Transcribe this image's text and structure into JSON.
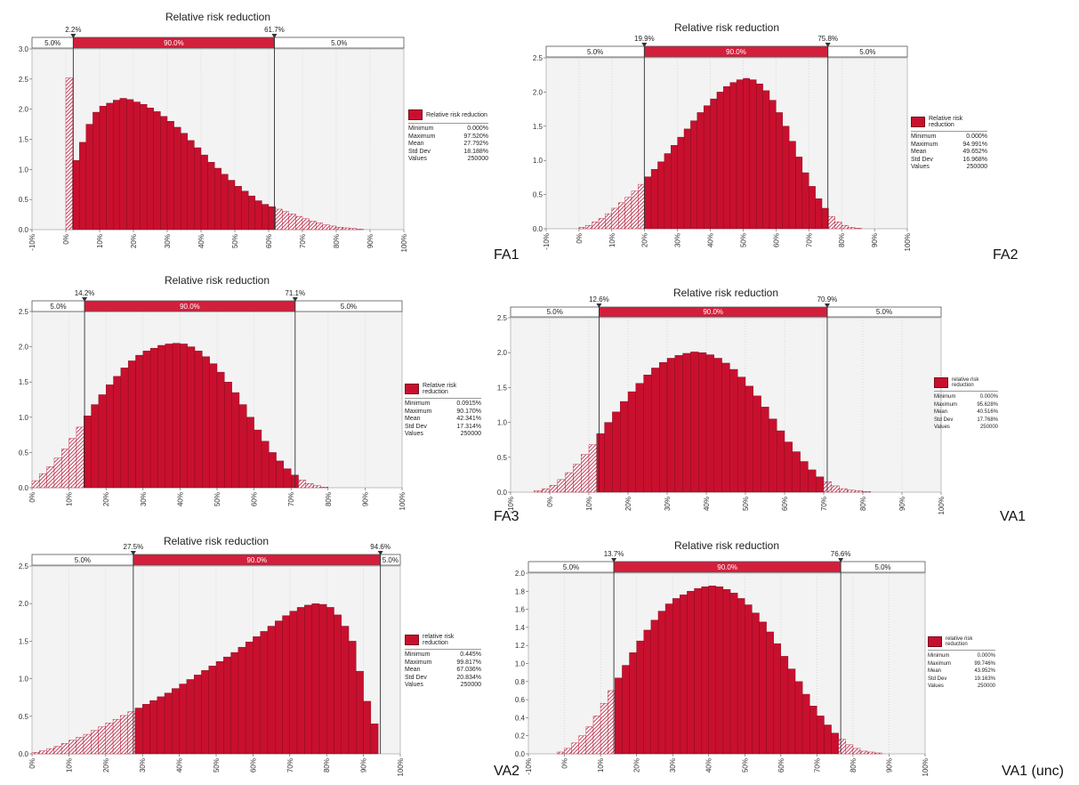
{
  "page": {
    "background": "#ffffff"
  },
  "colors": {
    "bar_fill": "#c8102e",
    "bar_stroke": "#7a0a1c",
    "hatch": "#b01030",
    "band_red": "#d21f3c",
    "plot_bg": "#f3f3f3"
  },
  "chart_data": [
    {
      "type": "bar",
      "tag": "FA1",
      "title": "Relative risk reduction",
      "band": {
        "left_pct": "5.0%",
        "mid_pct": "90.0%",
        "right_pct": "5.0%",
        "left_cut": "2.2%",
        "right_cut": "61.7%"
      },
      "cuts": [
        2.2,
        61.7
      ],
      "xlim": [
        -10,
        100
      ],
      "ylim": [
        0,
        3.0
      ],
      "yticks": [
        0,
        0.5,
        1.0,
        1.5,
        2.0,
        2.5,
        3.0
      ],
      "xticks": [
        -10,
        0,
        10,
        20,
        30,
        40,
        50,
        60,
        70,
        80,
        90,
        100
      ],
      "xtick_labels": [
        "-10%",
        "0%",
        "10%",
        "20%",
        "30%",
        "40%",
        "50%",
        "60%",
        "70%",
        "80%",
        "90%",
        "100%"
      ],
      "bin_start": 0,
      "bin_width": 2,
      "values": [
        2.52,
        1.15,
        1.45,
        1.75,
        1.95,
        2.05,
        2.1,
        2.15,
        2.18,
        2.16,
        2.12,
        2.08,
        2.02,
        1.96,
        1.88,
        1.8,
        1.7,
        1.6,
        1.48,
        1.36,
        1.24,
        1.12,
        1.02,
        0.92,
        0.82,
        0.72,
        0.64,
        0.56,
        0.48,
        0.42,
        0.38,
        0.34,
        0.3,
        0.26,
        0.22,
        0.18,
        0.14,
        0.11,
        0.08,
        0.06,
        0.04,
        0.03,
        0.02,
        0.01
      ],
      "legend": {
        "name": "Relative risk reduction",
        "stats": [
          {
            "label": "Minimum",
            "value": "0.000%"
          },
          {
            "label": "Maximum",
            "value": "97.520%"
          },
          {
            "label": "Mean",
            "value": "27.792%"
          },
          {
            "label": "Std Dev",
            "value": "18.188%"
          },
          {
            "label": "Values",
            "value": "250000"
          }
        ]
      }
    },
    {
      "type": "bar",
      "tag": "FA2",
      "title": "Relative risk reduction",
      "band": {
        "left_pct": "5.0%",
        "mid_pct": "90.0%",
        "right_pct": "5.0%",
        "left_cut": "19.9%",
        "right_cut": "75.8%"
      },
      "cuts": [
        19.9,
        75.8
      ],
      "xlim": [
        -10,
        100
      ],
      "ylim": [
        0,
        2.5
      ],
      "yticks": [
        0,
        0.5,
        1.0,
        1.5,
        2.0,
        2.5
      ],
      "xticks": [
        -10,
        0,
        10,
        20,
        30,
        40,
        50,
        60,
        70,
        80,
        90,
        100
      ],
      "xtick_labels": [
        "-10%",
        "0%",
        "10%",
        "20%",
        "30%",
        "40%",
        "50%",
        "60%",
        "70%",
        "80%",
        "90%",
        "100%"
      ],
      "bin_start": 0,
      "bin_width": 2,
      "values": [
        0.02,
        0.05,
        0.1,
        0.15,
        0.22,
        0.3,
        0.38,
        0.46,
        0.55,
        0.65,
        0.76,
        0.87,
        0.98,
        1.1,
        1.22,
        1.34,
        1.46,
        1.58,
        1.7,
        1.8,
        1.9,
        2.0,
        2.08,
        2.14,
        2.18,
        2.2,
        2.18,
        2.12,
        2.02,
        1.88,
        1.7,
        1.5,
        1.28,
        1.05,
        0.82,
        0.62,
        0.44,
        0.3,
        0.18,
        0.1,
        0.05,
        0.02,
        0.01
      ],
      "legend": {
        "name": "Relative risk reduction",
        "stats": [
          {
            "label": "Minimum",
            "value": "0.000%"
          },
          {
            "label": "Maximum",
            "value": "94.991%"
          },
          {
            "label": "Mean",
            "value": "49.652%"
          },
          {
            "label": "Std Dev",
            "value": "16.968%"
          },
          {
            "label": "Values",
            "value": "250000"
          }
        ]
      }
    },
    {
      "type": "bar",
      "tag": "FA3",
      "title": "Relative risk reduction",
      "band": {
        "left_pct": "5.0%",
        "mid_pct": "90.0%",
        "right_pct": "5.0%",
        "left_cut": "14.2%",
        "right_cut": "71.1%"
      },
      "cuts": [
        14.2,
        71.1
      ],
      "xlim": [
        0,
        100
      ],
      "ylim": [
        0,
        2.5
      ],
      "yticks": [
        0,
        0.5,
        1.0,
        1.5,
        2.0,
        2.5
      ],
      "xticks": [
        0,
        10,
        20,
        30,
        40,
        50,
        60,
        70,
        80,
        90,
        100
      ],
      "xtick_labels": [
        "0%",
        "10%",
        "20%",
        "30%",
        "40%",
        "50%",
        "60%",
        "70%",
        "80%",
        "90%",
        "100%"
      ],
      "bin_start": 0,
      "bin_width": 2,
      "values": [
        0.1,
        0.2,
        0.3,
        0.42,
        0.55,
        0.7,
        0.86,
        1.02,
        1.18,
        1.32,
        1.46,
        1.58,
        1.7,
        1.8,
        1.88,
        1.94,
        1.98,
        2.02,
        2.04,
        2.05,
        2.04,
        2.0,
        1.94,
        1.86,
        1.76,
        1.64,
        1.5,
        1.35,
        1.18,
        1.0,
        0.82,
        0.66,
        0.5,
        0.38,
        0.27,
        0.18,
        0.11,
        0.06,
        0.03,
        0.01
      ],
      "legend": {
        "name": "Relative risk reduction",
        "stats": [
          {
            "label": "Minimum",
            "value": "0.0915%"
          },
          {
            "label": "Maximum",
            "value": "90.170%"
          },
          {
            "label": "Mean",
            "value": "42.341%"
          },
          {
            "label": "Std Dev",
            "value": "17.314%"
          },
          {
            "label": "Values",
            "value": "250000"
          }
        ]
      }
    },
    {
      "type": "bar",
      "tag": "VA1",
      "title": "Relative risk reduction",
      "band": {
        "left_pct": "5.0%",
        "mid_pct": "90.0%",
        "right_pct": "5.0%",
        "left_cut": "12.6%",
        "right_cut": "70.9%"
      },
      "cuts": [
        12.6,
        70.9
      ],
      "xlim": [
        -10,
        100
      ],
      "ylim": [
        0,
        2.5
      ],
      "yticks": [
        0,
        0.5,
        1.0,
        1.5,
        2.0,
        2.5
      ],
      "xticks": [
        -10,
        0,
        10,
        20,
        30,
        40,
        50,
        60,
        70,
        80,
        90,
        100
      ],
      "xtick_labels": [
        "-10%",
        "0%",
        "10%",
        "20%",
        "30%",
        "40%",
        "50%",
        "60%",
        "70%",
        "80%",
        "90%",
        "100%"
      ],
      "bin_start": -4,
      "bin_width": 2,
      "values": [
        0.02,
        0.05,
        0.1,
        0.18,
        0.28,
        0.4,
        0.54,
        0.68,
        0.84,
        1.0,
        1.15,
        1.3,
        1.44,
        1.56,
        1.68,
        1.78,
        1.86,
        1.92,
        1.96,
        1.99,
        2.01,
        2.0,
        1.97,
        1.92,
        1.85,
        1.76,
        1.65,
        1.52,
        1.38,
        1.22,
        1.05,
        0.88,
        0.72,
        0.58,
        0.44,
        0.32,
        0.22,
        0.15,
        0.09,
        0.05,
        0.03,
        0.02,
        0.01
      ],
      "legend": {
        "name": "relative risk reduction",
        "stats": [
          {
            "label": "Minimum",
            "value": "0.000%"
          },
          {
            "label": "Maximum",
            "value": "95.628%"
          },
          {
            "label": "Mean",
            "value": "40.516%"
          },
          {
            "label": "Std Dev",
            "value": "17.768%"
          },
          {
            "label": "Values",
            "value": "250000"
          }
        ]
      }
    },
    {
      "type": "bar",
      "tag": "VA2",
      "title": "Relative risk reduction",
      "band": {
        "left_pct": "5.0%",
        "mid_pct": "90.0%",
        "right_pct": "5.0%",
        "left_cut": "27.5%",
        "right_cut": "94.6%"
      },
      "cuts": [
        27.5,
        94.6
      ],
      "xlim": [
        0,
        100
      ],
      "ylim": [
        0,
        2.5
      ],
      "yticks": [
        0,
        0.5,
        1.0,
        1.5,
        2.0,
        2.5
      ],
      "xticks": [
        0,
        10,
        20,
        30,
        40,
        50,
        60,
        70,
        80,
        90,
        100
      ],
      "xtick_labels": [
        "0%",
        "10%",
        "20%",
        "30%",
        "40%",
        "50%",
        "60%",
        "70%",
        "80%",
        "90%",
        "100%"
      ],
      "bin_start": 0,
      "bin_width": 2,
      "values": [
        0.02,
        0.04,
        0.07,
        0.1,
        0.14,
        0.18,
        0.22,
        0.26,
        0.31,
        0.36,
        0.41,
        0.46,
        0.51,
        0.56,
        0.61,
        0.66,
        0.71,
        0.76,
        0.81,
        0.87,
        0.93,
        0.99,
        1.05,
        1.11,
        1.17,
        1.23,
        1.29,
        1.35,
        1.42,
        1.49,
        1.56,
        1.63,
        1.7,
        1.77,
        1.84,
        1.9,
        1.95,
        1.98,
        2.0,
        1.99,
        1.95,
        1.85,
        1.7,
        1.5,
        1.1,
        0.7,
        0.4
      ],
      "legend": {
        "name": "relative risk reduction",
        "stats": [
          {
            "label": "Minimum",
            "value": "0.445%"
          },
          {
            "label": "Maximum",
            "value": "99.817%"
          },
          {
            "label": "Mean",
            "value": "67.036%"
          },
          {
            "label": "Std Dev",
            "value": "20.834%"
          },
          {
            "label": "Values",
            "value": "250000"
          }
        ]
      }
    },
    {
      "type": "bar",
      "tag": "VA1 (unc)",
      "title": "Relative risk reduction",
      "band": {
        "left_pct": "5.0%",
        "mid_pct": "90.0%",
        "right_pct": "5.0%",
        "left_cut": "13.7%",
        "right_cut": "76.6%"
      },
      "cuts": [
        13.7,
        76.6
      ],
      "xlim": [
        -10,
        100
      ],
      "ylim": [
        0,
        2.0
      ],
      "yticks": [
        0,
        0.2,
        0.4,
        0.6,
        0.8,
        1.0,
        1.2,
        1.4,
        1.6,
        1.8,
        2.0
      ],
      "xticks": [
        -10,
        0,
        10,
        20,
        30,
        40,
        50,
        60,
        70,
        80,
        90,
        100
      ],
      "xtick_labels": [
        "-10%",
        "0%",
        "10%",
        "20%",
        "30%",
        "40%",
        "50%",
        "60%",
        "70%",
        "80%",
        "90%",
        "100%"
      ],
      "bin_start": -2,
      "bin_width": 2,
      "values": [
        0.02,
        0.06,
        0.12,
        0.2,
        0.3,
        0.42,
        0.56,
        0.7,
        0.84,
        0.98,
        1.12,
        1.25,
        1.37,
        1.48,
        1.58,
        1.66,
        1.72,
        1.76,
        1.8,
        1.83,
        1.85,
        1.86,
        1.85,
        1.82,
        1.78,
        1.72,
        1.65,
        1.56,
        1.46,
        1.35,
        1.22,
        1.08,
        0.94,
        0.8,
        0.66,
        0.53,
        0.42,
        0.32,
        0.23,
        0.16,
        0.1,
        0.06,
        0.03,
        0.02,
        0.01
      ],
      "legend": {
        "name": "relative risk reduction",
        "stats": [
          {
            "label": "Minimum",
            "value": "0.000%"
          },
          {
            "label": "Maximum",
            "value": "99.746%"
          },
          {
            "label": "Mean",
            "value": "43.952%"
          },
          {
            "label": "Std Dev",
            "value": "19.163%"
          },
          {
            "label": "Values",
            "value": "250000"
          }
        ]
      }
    }
  ]
}
